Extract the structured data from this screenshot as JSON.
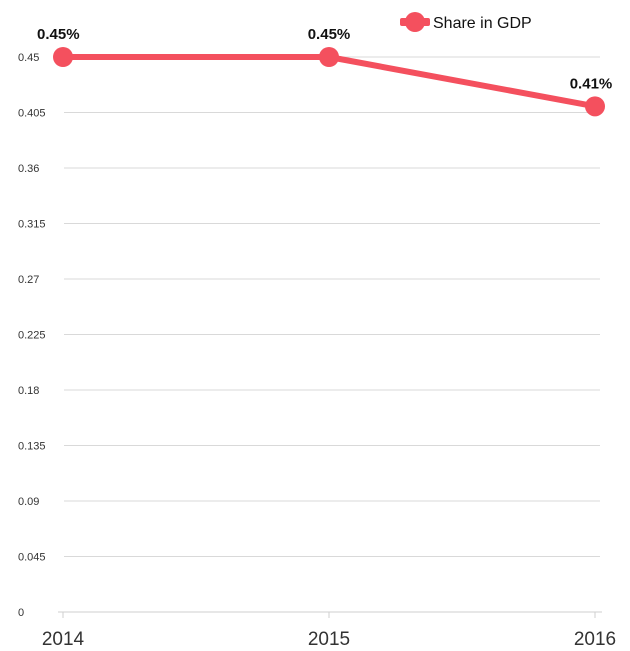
{
  "chart_data": {
    "type": "line",
    "categories": [
      "2014",
      "2015",
      "2016"
    ],
    "series": [
      {
        "name": "Share in GDP",
        "values": [
          0.45,
          0.45,
          0.41
        ],
        "labels": [
          "0.45%",
          "0.45%",
          "0.41%"
        ],
        "color": "#f4505e"
      }
    ],
    "yticks": [
      "0",
      "0.045",
      "0.09",
      "0.135",
      "0.18",
      "0.225",
      "0.27",
      "0.315",
      "0.36",
      "0.405",
      "0.45"
    ],
    "ylim": [
      0,
      0.45
    ],
    "grid": true,
    "legend_position": "top-right"
  }
}
